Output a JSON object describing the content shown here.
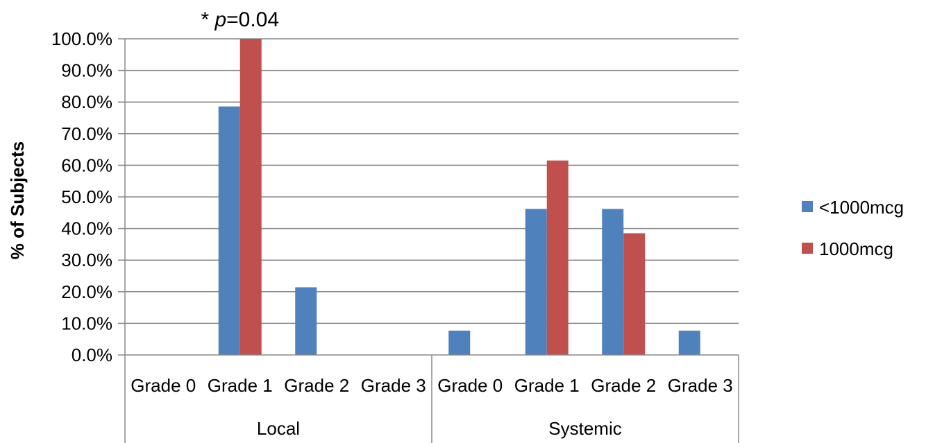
{
  "chart_data": {
    "type": "bar",
    "title": "",
    "xlabel": "",
    "ylabel": "% of Subjects",
    "ylim": [
      0,
      100
    ],
    "ytick_step": 10,
    "ytick_labels": [
      "0.0%",
      "10.0%",
      "20.0%",
      "30.0%",
      "40.0%",
      "50.0%",
      "60.0%",
      "70.0%",
      "80.0%",
      "90.0%",
      "100.0%"
    ],
    "grid": true,
    "legend_position": "right",
    "groups": [
      {
        "label": "Local",
        "categories": [
          "Grade 0",
          "Grade 1",
          "Grade 2",
          "Grade 3"
        ]
      },
      {
        "label": "Systemic",
        "categories": [
          "Grade 0",
          "Grade 1",
          "Grade 2",
          "Grade 3"
        ]
      }
    ],
    "series": [
      {
        "name": "<1000mcg",
        "color": "#4F81BD",
        "values": [
          0,
          78.6,
          21.4,
          0,
          7.7,
          46.2,
          46.2,
          7.7
        ]
      },
      {
        "name": "1000mcg",
        "color": "#C0504D",
        "values": [
          0,
          100,
          0,
          0,
          0,
          61.5,
          38.5,
          0
        ]
      }
    ],
    "annotation": {
      "prefix": "* ",
      "italic": "p",
      "suffix": "=0.04",
      "category_index": 1
    }
  }
}
